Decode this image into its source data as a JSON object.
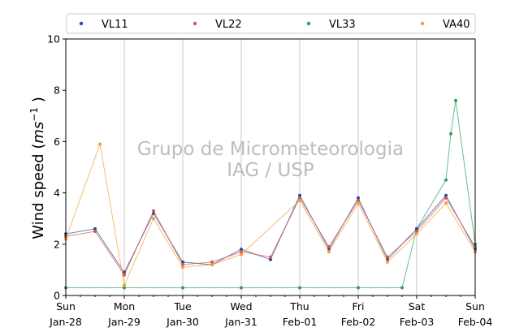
{
  "chart_data": {
    "type": "scatter",
    "title": "",
    "ylabel": "Wind speed (ms⁻¹ )",
    "ylabel_prefix": "Wind speed (",
    "ylabel_unit_base": "ms",
    "ylabel_unit_exp": "−1",
    "ylabel_suffix": " )",
    "ylim": [
      0,
      10
    ],
    "yticks": [
      0,
      2,
      4,
      6,
      8,
      10
    ],
    "xlim": [
      "2024-01-28",
      "2024-02-04"
    ],
    "xticks": [
      {
        "day": "Sun",
        "date": "Jan-28"
      },
      {
        "day": "Mon",
        "date": "Jan-29"
      },
      {
        "day": "Tue",
        "date": "Jan-30"
      },
      {
        "day": "Wed",
        "date": "Jan-31"
      },
      {
        "day": "Thu",
        "date": "Feb-01"
      },
      {
        "day": "Fri",
        "date": "Feb-02"
      },
      {
        "day": "Sat",
        "date": "Feb-03"
      },
      {
        "day": "Sun",
        "date": "Feb-04"
      }
    ],
    "vertical_gridlines": true,
    "legend_position": "top",
    "watermark": [
      "Grupo de Micrometeorologia",
      "IAG / USP"
    ],
    "series": [
      {
        "name": "VL11",
        "color": "#1f4e9c",
        "marker": "dot",
        "points": [
          [
            "2024-01-28",
            2.4
          ],
          [
            "2024-01-28 12:00",
            2.6
          ],
          [
            "2024-01-29",
            0.9
          ],
          [
            "2024-01-29 12:00",
            3.2
          ],
          [
            "2024-01-30",
            1.3
          ],
          [
            "2024-01-30 12:00",
            1.2
          ],
          [
            "2024-01-31",
            1.8
          ],
          [
            "2024-01-31 12:00",
            1.4
          ],
          [
            "2024-02-01",
            3.9
          ],
          [
            "2024-02-01 12:00",
            1.8
          ],
          [
            "2024-02-02",
            3.8
          ],
          [
            "2024-02-02 12:00",
            1.4
          ],
          [
            "2024-02-03",
            2.6
          ],
          [
            "2024-02-03 12:00",
            3.9
          ],
          [
            "2024-02-04",
            1.8
          ]
        ]
      },
      {
        "name": "VL22",
        "color": "#d9534f",
        "marker": "dot",
        "points": [
          [
            "2024-01-28",
            2.3
          ],
          [
            "2024-01-28 12:00",
            2.5
          ],
          [
            "2024-01-29",
            0.8
          ],
          [
            "2024-01-29 12:00",
            3.3
          ],
          [
            "2024-01-30",
            1.2
          ],
          [
            "2024-01-30 12:00",
            1.3
          ],
          [
            "2024-01-31",
            1.7
          ],
          [
            "2024-01-31 12:00",
            1.5
          ],
          [
            "2024-02-01",
            3.8
          ],
          [
            "2024-02-01 12:00",
            1.9
          ],
          [
            "2024-02-02",
            3.7
          ],
          [
            "2024-02-02 12:00",
            1.5
          ],
          [
            "2024-02-03",
            2.5
          ],
          [
            "2024-02-03 12:00",
            3.8
          ],
          [
            "2024-02-04",
            1.9
          ]
        ]
      },
      {
        "name": "VL33",
        "color": "#2ca05a",
        "marker": "dot",
        "points": [
          [
            "2024-01-28",
            0.3
          ],
          [
            "2024-01-29",
            0.3
          ],
          [
            "2024-01-30",
            0.3
          ],
          [
            "2024-01-31",
            0.3
          ],
          [
            "2024-02-01",
            0.3
          ],
          [
            "2024-02-02",
            0.3
          ],
          [
            "2024-02-02 18:00",
            0.3
          ],
          [
            "2024-02-03",
            2.6
          ],
          [
            "2024-02-03 12:00",
            4.5
          ],
          [
            "2024-02-03 14:00",
            6.3
          ],
          [
            "2024-02-03 16:00",
            7.6
          ],
          [
            "2024-02-04",
            2.0
          ]
        ]
      },
      {
        "name": "VA40",
        "color": "#f0a030",
        "marker": "dot",
        "points": [
          [
            "2024-01-28",
            2.2
          ],
          [
            "2024-01-28 14:00",
            5.9
          ],
          [
            "2024-01-29",
            0.4
          ],
          [
            "2024-01-29 12:00",
            3.0
          ],
          [
            "2024-01-30",
            1.1
          ],
          [
            "2024-01-30 12:00",
            1.2
          ],
          [
            "2024-01-31",
            1.6
          ],
          [
            "2024-02-01",
            3.7
          ],
          [
            "2024-02-01 12:00",
            1.7
          ],
          [
            "2024-02-02",
            3.6
          ],
          [
            "2024-02-02 12:00",
            1.3
          ],
          [
            "2024-02-03",
            2.4
          ],
          [
            "2024-02-03 12:00",
            3.6
          ],
          [
            "2024-02-04",
            1.7
          ]
        ]
      }
    ]
  }
}
